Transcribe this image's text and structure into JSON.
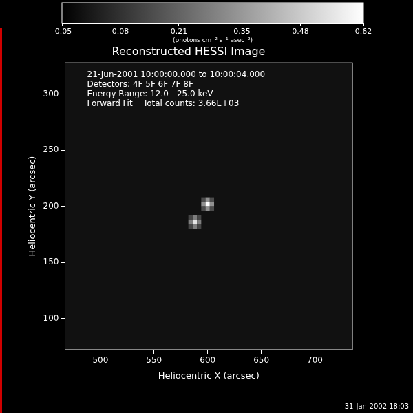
{
  "chart_data": {
    "type": "heatmap",
    "title": "Reconstructed HESSI Image",
    "annotations": [
      "21-Jun-2001 10:00:00.000 to 10:00:04.000",
      "Detectors: 4F 5F 6F 7F 8F",
      "Energy Range: 12.0 - 25.0 keV",
      "Forward Fit    Total counts: 3.66E+03"
    ],
    "x_label": "Heliocentric X (arcsec)",
    "y_label": "Heliocentric Y (arcsec)",
    "xlim": [
      467,
      735
    ],
    "ylim": [
      72,
      328
    ],
    "xticks": [
      500,
      550,
      600,
      650,
      700
    ],
    "yticks": [
      100,
      150,
      200,
      250,
      300
    ],
    "grid": false,
    "cells": {
      "x": [
        596,
        600,
        604,
        596,
        600,
        604,
        596,
        600,
        604,
        584,
        588,
        592,
        584,
        588,
        592,
        584,
        588,
        592
      ],
      "y": [
        206,
        206,
        206,
        202,
        202,
        202,
        198,
        198,
        198,
        190,
        190,
        190,
        186,
        186,
        186,
        182,
        182,
        182
      ],
      "values": [
        0.15,
        0.33,
        0.15,
        0.33,
        0.62,
        0.33,
        0.15,
        0.33,
        0.15,
        0.13,
        0.28,
        0.13,
        0.28,
        0.55,
        0.28,
        0.13,
        0.28,
        0.13
      ]
    },
    "colorbar": {
      "label": "(photons cm⁻² s⁻¹ asec⁻²)",
      "range": [
        -0.05,
        0.62
      ],
      "ticks": [
        -0.05,
        0.08,
        0.21,
        0.35,
        0.48,
        0.62
      ]
    }
  },
  "footer": "31-Jan-2002 18:03"
}
